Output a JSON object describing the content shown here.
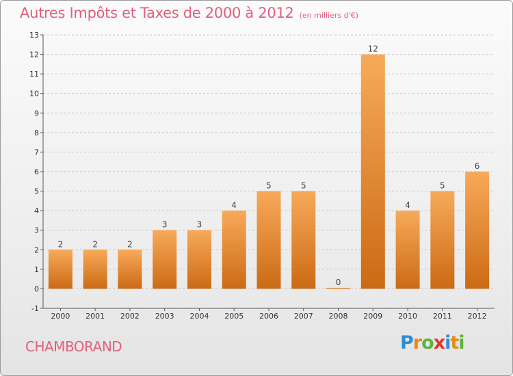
{
  "title": "Autres Impôts et Taxes de 2000 à 2012",
  "unit_note": "(en milliers d'€)",
  "commune": "CHAMBORAND",
  "logo": {
    "letters": [
      "P",
      "r",
      "o",
      "x",
      "i",
      "t",
      "i"
    ],
    "colors": [
      "#2a8fd6",
      "#e88a1a",
      "#5bb53a",
      "#e6332a",
      "#2a8fd6",
      "#e88a1a",
      "#5bb53a"
    ]
  },
  "colors": {
    "title": "#e0607e",
    "bar_top": "#f7aa5a",
    "bar_bottom": "#cc6a14",
    "axis": "#555555",
    "grid": "#c8c8c8"
  },
  "chart_data": {
    "type": "bar",
    "categories": [
      "2000",
      "2001",
      "2002",
      "2003",
      "2004",
      "2005",
      "2006",
      "2007",
      "2008",
      "2009",
      "2010",
      "2011",
      "2012"
    ],
    "values": [
      2,
      2,
      2,
      3,
      3,
      4,
      5,
      5,
      0,
      12,
      4,
      5,
      6
    ],
    "ylim": [
      -1,
      13
    ],
    "yticks": [
      -1,
      0,
      1,
      2,
      3,
      4,
      5,
      6,
      7,
      8,
      9,
      10,
      11,
      12,
      13
    ],
    "grid": "horizontal dashed",
    "title": "Autres Impôts et Taxes de 2000 à 2012",
    "xlabel": "",
    "ylabel": ""
  }
}
